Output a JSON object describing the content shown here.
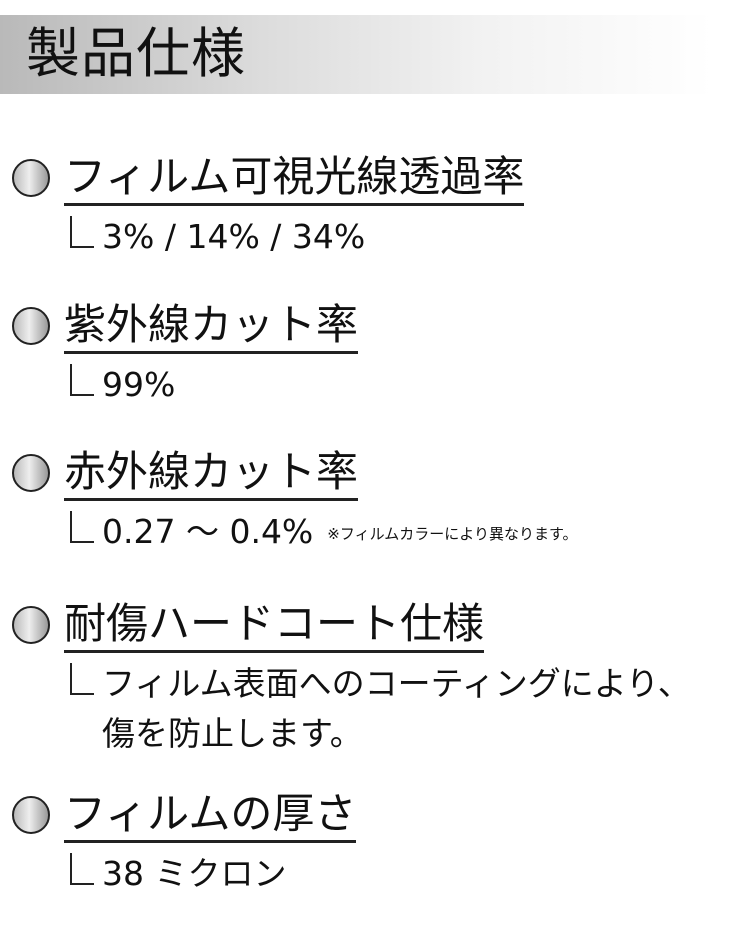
{
  "header": {
    "title": "製品仕様"
  },
  "sections": [
    {
      "heading": "フィルム可視光線透過率",
      "value": "3% / 14% / 34%"
    },
    {
      "heading": "紫外線カット率",
      "value": "99%"
    },
    {
      "heading": "赤外線カット率",
      "value": "0.27 ～ 0.4%",
      "note": "※フィルムカラーにより異なります。"
    },
    {
      "heading": "耐傷ハードコート仕様",
      "value": "フィルム表面へのコーティングにより、",
      "value2": "傷を防止します。"
    },
    {
      "heading": "フィルムの厚さ",
      "value": "38 ミクロン"
    }
  ]
}
